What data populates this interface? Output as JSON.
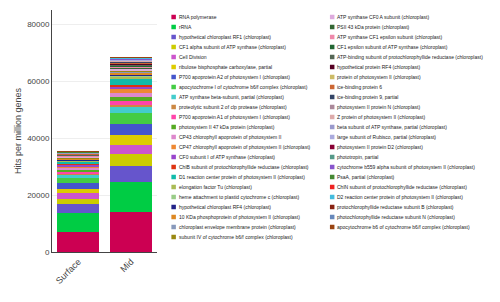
{
  "chart_data": {
    "type": "bar",
    "stacked": true,
    "categories": [
      "Surface",
      "Mid"
    ],
    "ylabel": "Hits per million genes",
    "ylim": [
      0,
      85000
    ],
    "yticks": [
      0,
      20000,
      40000,
      60000,
      80000
    ],
    "grid": true,
    "legend": "right",
    "series": [
      {
        "name": "RNA polymerase",
        "color": "#cc0052",
        "values": [
          7200,
          14000
        ]
      },
      {
        "name": "rRNA",
        "color": "#00cc44",
        "values": [
          6500,
          10500
        ]
      },
      {
        "name": "hypothetical chloroplast RF1 (chloroplast)",
        "color": "#6655cc",
        "values": [
          3200,
          5800
        ]
      },
      {
        "name": "CF1 alpha subunit of ATP synthase (chloroplast)",
        "color": "#cccc00",
        "values": [
          1800,
          4200
        ]
      },
      {
        "name": "Cell Division",
        "color": "#cc55cc",
        "values": [
          2200,
          3000
        ]
      },
      {
        "name": "ribulose bisphosphate carboxylase, partial",
        "color": "#ddcc00",
        "values": [
          1400,
          3500
        ]
      },
      {
        "name": "P700 apoprotein A2 of photosystem I (chloroplast)",
        "color": "#4455cc",
        "values": [
          2000,
          4000
        ]
      },
      {
        "name": "apocytochrome I of cytochrome b6/f complex (chloroplast)",
        "color": "#44cc44",
        "values": [
          1800,
          3800
        ]
      },
      {
        "name": "ATP synthase beta-subunit, partial (chloroplast)",
        "color": "#44cccc",
        "values": [
          1000,
          2000
        ]
      },
      {
        "name": "proteolytic subunit 2 of clp protease (chloroplast)",
        "color": "#cc8844",
        "values": [
          500,
          900
        ]
      },
      {
        "name": "P700 apoprotein A1 of photosystem I (chloroplast)",
        "color": "#ff44aa",
        "values": [
          600,
          1200
        ]
      },
      {
        "name": "photosystem II 47 kDa protein (chloroplast)",
        "color": "#55aa22",
        "values": [
          700,
          1500
        ]
      },
      {
        "name": "CP43 chlorophyll apoprotein of photosystem II",
        "color": "#dd88cc",
        "values": [
          700,
          1500
        ]
      },
      {
        "name": "CP47 chlorophyll apoprotein of photosystem II (chloroplast)",
        "color": "#ee8833",
        "values": [
          600,
          1200
        ]
      },
      {
        "name": "CF0 subunit I of ATP synthase (chloroplast)",
        "color": "#9944cc",
        "values": [
          400,
          800
        ]
      },
      {
        "name": "ChlB subunit of protochlorophyllide reductase (chloroplast)",
        "color": "#dd3311",
        "values": [
          300,
          700
        ]
      },
      {
        "name": "D1 reaction center protein of photosystem II (chloroplast)",
        "color": "#11bbaa",
        "values": [
          800,
          2200
        ]
      },
      {
        "name": "elongation factor Tu (chloroplast)",
        "color": "#aabb55",
        "values": [
          400,
          700
        ]
      },
      {
        "name": "heme attachment to plastid cytochrome c (chloroplast)",
        "color": "#99cc88",
        "values": [
          200,
          400
        ]
      },
      {
        "name": "hypothetical chloroplast RF4 (chloroplast)",
        "color": "#222288",
        "values": [
          200,
          500
        ]
      },
      {
        "name": "10 KDa phosphoprotein of photosystem II (chloroplast)",
        "color": "#dd8822",
        "values": [
          300,
          600
        ]
      },
      {
        "name": "chloroplast envelope membrane protein (chloroplast)",
        "color": "#8899bb",
        "values": [
          200,
          400
        ]
      },
      {
        "name": "subunit IV of cytochrome b6/f complex (chloroplast)",
        "color": "#998811",
        "values": [
          150,
          350
        ]
      },
      {
        "name": "ATP synthase CF0 A subunit (chloroplast)",
        "color": "#ddaadd",
        "values": [
          300,
          600
        ]
      },
      {
        "name": "PSII 43 kDa protein (chloroplast)",
        "color": "#336633",
        "values": [
          200,
          500
        ]
      },
      {
        "name": "ATP synthase CF1 epsilon subunit (chloroplast)",
        "color": "#ee88aa",
        "values": [
          200,
          400
        ]
      },
      {
        "name": "CF1 epsilon subunit of ATP synthase (chloroplast)",
        "color": "#226633",
        "values": [
          150,
          350
        ]
      },
      {
        "name": "ATP-binding subunit of protochlorophyllide reductase (chloroplast)",
        "color": "#556655",
        "values": [
          150,
          300
        ]
      },
      {
        "name": "hypothetical protein RF4 (chloroplast)",
        "color": "#550022",
        "values": [
          100,
          250
        ]
      },
      {
        "name": "protein of photosystem II (chloroplast)",
        "color": "#ccbb66",
        "values": [
          100,
          200
        ]
      },
      {
        "name": "ice-binding protein 6",
        "color": "#cc6633",
        "values": [
          120,
          250
        ]
      },
      {
        "name": "ice-binding protein 9, partial",
        "color": "#334466",
        "values": [
          100,
          200
        ]
      },
      {
        "name": "photosystem II protein N (chloroplast)",
        "color": "#aa8899",
        "values": [
          80,
          180
        ]
      },
      {
        "name": "Z protein of photosystem II (chloroplast)",
        "color": "#ddaaaa",
        "values": [
          80,
          150
        ]
      },
      {
        "name": "beta subunit of ATP synthase, partial (chloroplast)",
        "color": "#9999cc",
        "values": [
          80,
          160
        ]
      },
      {
        "name": "large subunit of Rubisco, partial (chloroplast)",
        "color": "#aaaadd",
        "values": [
          80,
          150
        ]
      },
      {
        "name": "photosystem II protein D2 (chloroplast)",
        "color": "#880033",
        "values": [
          80,
          150
        ]
      },
      {
        "name": "phototropin, partial",
        "color": "#559988",
        "values": [
          70,
          130
        ]
      },
      {
        "name": "cytochrome b559 alpha subunit of photosystem II (chloroplast)",
        "color": "#8855cc",
        "values": [
          70,
          120
        ]
      },
      {
        "name": "PsaA, partial (chloroplast)",
        "color": "#448833",
        "values": [
          60,
          110
        ]
      },
      {
        "name": "ChlN subunit of protochlorophyllide reductase (chloroplast)",
        "color": "#ee2222",
        "values": [
          60,
          100
        ]
      },
      {
        "name": "D2 reaction center protein of photosystem II (chloroplast)",
        "color": "#44bbdd",
        "values": [
          50,
          100
        ]
      },
      {
        "name": "protochlorophyllide reductase subunit B (chloroplast)",
        "color": "#882211",
        "values": [
          50,
          90
        ]
      },
      {
        "name": "photochlorophyllide reductase subunit N (chloroplast)",
        "color": "#6688bb",
        "values": [
          50,
          80
        ]
      },
      {
        "name": "apocytochrome b6 of cytochrome b6/f complex (chloroplast)",
        "color": "#994411",
        "values": [
          40,
          70
        ]
      }
    ]
  }
}
